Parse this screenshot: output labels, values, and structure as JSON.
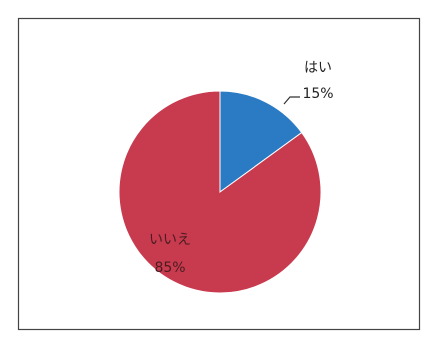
{
  "chart_data": {
    "type": "pie",
    "categories": [
      "はい",
      "いいえ"
    ],
    "values": [
      15,
      85
    ],
    "value_labels": [
      "15%",
      "85%"
    ],
    "colors": [
      "#2b7bc4",
      "#c83a4e"
    ]
  }
}
